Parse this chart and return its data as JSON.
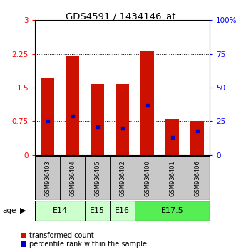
{
  "title": "GDS4591 / 1434146_at",
  "samples": [
    "GSM936403",
    "GSM936404",
    "GSM936405",
    "GSM936402",
    "GSM936400",
    "GSM936401",
    "GSM936406"
  ],
  "transformed_counts": [
    1.72,
    2.19,
    1.58,
    1.58,
    2.31,
    0.8,
    0.75
  ],
  "percentile_ranks_pct": [
    25,
    29,
    21,
    20,
    37,
    13,
    18
  ],
  "age_groups": [
    {
      "label": "E14",
      "indices": [
        0,
        1
      ],
      "color": "#ccffcc"
    },
    {
      "label": "E15",
      "indices": [
        2
      ],
      "color": "#ccffcc"
    },
    {
      "label": "E16",
      "indices": [
        3
      ],
      "color": "#ccffcc"
    },
    {
      "label": "E17.5",
      "indices": [
        4,
        5,
        6
      ],
      "color": "#55ee55"
    }
  ],
  "ylim_left": [
    0,
    3
  ],
  "ylim_right": [
    0,
    100
  ],
  "yticks_left": [
    0,
    0.75,
    1.5,
    2.25,
    3
  ],
  "yticks_right": [
    0,
    25,
    50,
    75,
    100
  ],
  "bar_color": "#cc1100",
  "percentile_color": "#0000cc",
  "bar_width": 0.55,
  "sample_bg_color": "#c8c8c8",
  "age14_15_16_color": "#ccffcc",
  "age17_color": "#55ee55",
  "legend_labels": [
    "transformed count",
    "percentile rank within the sample"
  ]
}
